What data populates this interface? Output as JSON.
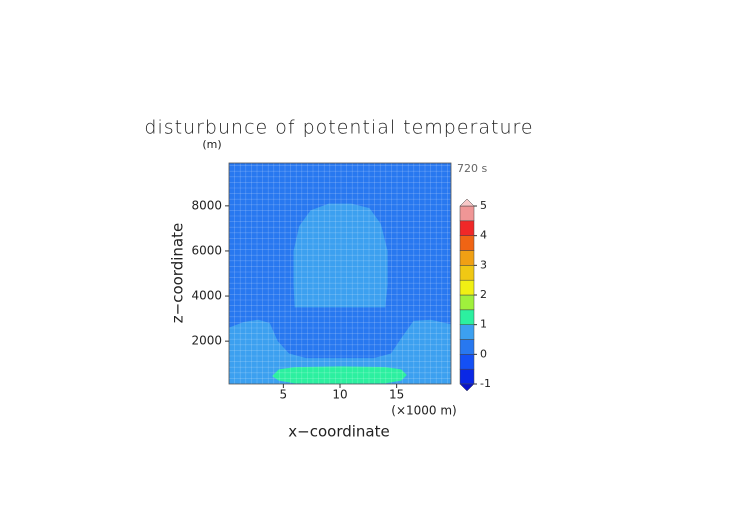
{
  "chart_data": {
    "type": "contour",
    "title": "disturbunce of potential temperature",
    "y_unit": "(m)",
    "x_unit": "(×1000 m)",
    "annotation": "720 s",
    "xlabel": "x−coordinate",
    "ylabel": "z−coordinate",
    "xlim": [
      0.2,
      19.8
    ],
    "ylim": [
      100,
      9900
    ],
    "xticks": [
      5,
      10,
      15
    ],
    "yticks": [
      2000,
      4000,
      6000,
      8000
    ],
    "grid": true,
    "levels": [
      -1,
      -0.5,
      0,
      0.5,
      1,
      1.5,
      2,
      2.5,
      3,
      3.5,
      4,
      4.5,
      5
    ],
    "level_colors": [
      "#0a28e6",
      "#1450f5",
      "#2878f0",
      "#3ca0f0",
      "#2cf0a0",
      "#a0f03c",
      "#f0f014",
      "#f0c814",
      "#f0a014",
      "#f06414",
      "#f02828",
      "#f09696"
    ],
    "under_color": "#0a14c8",
    "over_color": "#f8c8c8",
    "colorbar_ticks": [
      -1,
      0,
      1,
      2,
      3,
      4,
      5
    ],
    "regions": [
      {
        "level": 0,
        "x": [
          0.2,
          19.8,
          19.8,
          0.2
        ],
        "y": [
          100,
          100,
          9900,
          9900
        ]
      },
      {
        "level": 0.5,
        "x": [
          0.2,
          0.2,
          1.5,
          2.8,
          3.8,
          4.5,
          5.5,
          7,
          13,
          14.5,
          15.5,
          16.5,
          18,
          19.8,
          19.8
        ],
        "y": [
          100,
          2600,
          2850,
          2950,
          2800,
          2000,
          1450,
          1250,
          1250,
          1450,
          2200,
          2900,
          2950,
          2750,
          100
        ]
      },
      {
        "level": 0.5,
        "x": [
          6,
          14,
          14.2,
          14.2,
          13.6,
          12.6,
          11,
          9,
          7.4,
          6.4,
          5.9,
          5.9
        ],
        "y": [
          3500,
          3500,
          4500,
          6000,
          7200,
          7900,
          8100,
          8100,
          7800,
          7100,
          6000,
          4500
        ]
      },
      {
        "level": 1,
        "x": [
          4,
          4.6,
          6,
          10,
          14,
          15.4,
          15.9,
          15.4,
          14,
          10,
          6,
          4.6
        ],
        "y": [
          450,
          750,
          850,
          880,
          850,
          750,
          500,
          250,
          130,
          110,
          130,
          250
        ]
      }
    ]
  }
}
